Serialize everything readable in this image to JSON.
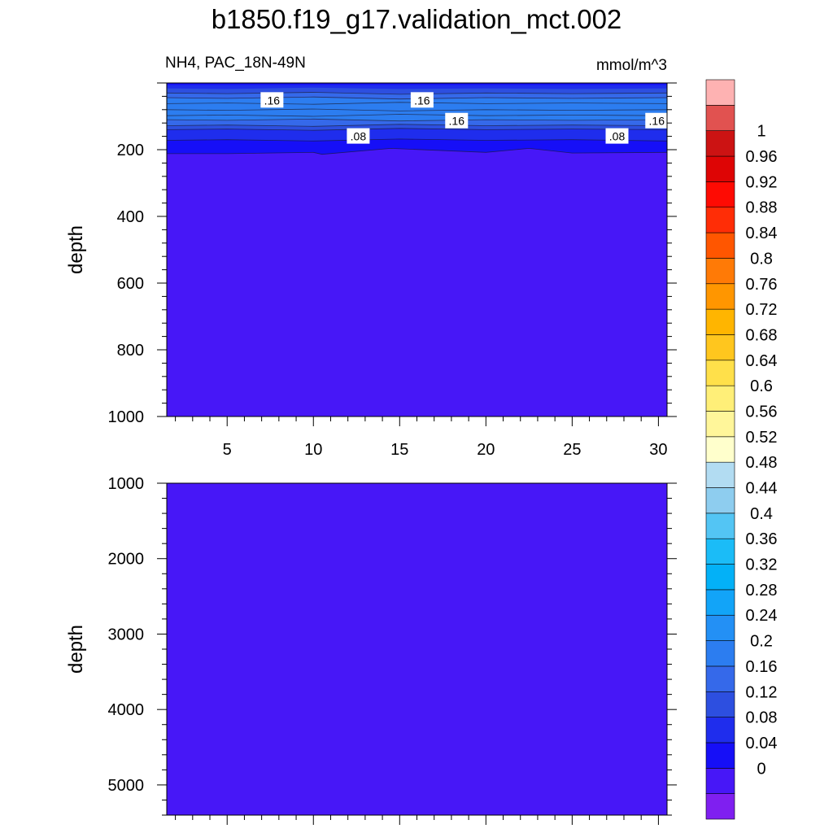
{
  "chart_data": {
    "type": "heatmap",
    "title": "b1850.f19_g17.validation_mct.002",
    "left_string": "NH4, PAC_18N-49N",
    "right_string": "mmol/m^3",
    "variable": "NH4",
    "units": "mmol/m^3",
    "x": {
      "ticks": [
        5,
        10,
        15,
        20,
        25,
        30
      ],
      "tick_labels": [
        "5",
        "10",
        "15",
        "20",
        "25",
        "30"
      ],
      "range": [
        1.5,
        30.5
      ]
    },
    "panels": [
      {
        "ylabel": "depth",
        "ylim": [
          0,
          1000
        ],
        "y_reversed": true,
        "y_ticks": [
          200,
          400,
          600,
          800,
          1000
        ],
        "y_tick_labels": [
          "200",
          "400",
          "600",
          "800",
          "1000"
        ],
        "bands": [
          {
            "value": 0.06,
            "x": [
              1.5,
              5,
              10,
              10.5,
              14.5,
              20,
              22.5,
              25,
              30.5
            ],
            "top": [
              0,
              0,
              0,
              0,
              0,
              0,
              0,
              0,
              0
            ],
            "bottom": [
              212,
              212,
              208,
              214,
              196,
              208,
              196,
              210,
              208
            ]
          },
          {
            "value": 0.1,
            "x": [
              1.5,
              5,
              10,
              15,
              20,
              25,
              30.5
            ],
            "top": [
              0,
              0,
              0,
              0,
              0,
              0,
              0
            ],
            "bottom": [
              172,
              170,
              174,
              168,
              172,
              170,
              174
            ]
          },
          {
            "value": 0.14,
            "x": [
              1.5,
              5,
              10,
              15,
              20,
              25,
              30.5
            ],
            "top": [
              0,
              0,
              0,
              0,
              0,
              0,
              0
            ],
            "bottom": [
              140,
              138,
              142,
              136,
              140,
              138,
              140
            ]
          },
          {
            "value": 0.18,
            "x": [
              1.5,
              5,
              10,
              15,
              20,
              25,
              30.5
            ],
            "top": [
              0,
              0,
              0,
              0,
              0,
              0,
              0
            ],
            "bottom": [
              128,
              126,
              130,
              124,
              128,
              126,
              128
            ]
          },
          {
            "value": 0.22,
            "x": [
              1.5,
              5,
              10,
              15,
              20,
              25,
              30.5
            ],
            "top": [
              46,
              48,
              44,
              50,
              46,
              48,
              46
            ],
            "bottom": [
              110,
              112,
              108,
              114,
              110,
              112,
              110
            ]
          },
          {
            "value": 0.18,
            "x": [
              1.5,
              5,
              10,
              15,
              20,
              25,
              30.5
            ],
            "top": [
              0,
              0,
              0,
              0,
              0,
              0,
              0
            ],
            "bottom": [
              44,
              46,
              42,
              48,
              44,
              46,
              44
            ]
          },
          {
            "value": 0.14,
            "x": [
              1.5,
              5,
              10,
              15,
              20,
              25,
              30.5
            ],
            "top": [
              0,
              0,
              0,
              0,
              0,
              0,
              0
            ],
            "bottom": [
              30,
              32,
              28,
              34,
              30,
              32,
              30
            ]
          },
          {
            "value": 0.1,
            "x": [
              1.5,
              5,
              10,
              15,
              20,
              25,
              30.5
            ],
            "top": [
              0,
              0,
              0,
              0,
              0,
              0,
              0
            ],
            "bottom": [
              16,
              18,
              14,
              18,
              16,
              18,
              16
            ]
          },
          {
            "value": 0.06,
            "x": [
              1.5,
              30.5
            ],
            "top": [
              0,
              0
            ],
            "bottom": [
              6,
              6
            ]
          }
        ],
        "contour_lines": [
          {
            "x": [
              1.5,
              5,
              10,
              15,
              20,
              25,
              30.5
            ],
            "y": [
              30,
              32,
              28,
              34,
              30,
              32,
              30
            ]
          },
          {
            "x": [
              1.5,
              5,
              10,
              15,
              20,
              25,
              30.5
            ],
            "y": [
              44,
              46,
              42,
              48,
              44,
              46,
              44
            ]
          },
          {
            "x": [
              1.5,
              5,
              10,
              15,
              20,
              25,
              30.5
            ],
            "y": [
              62,
              60,
              64,
              58,
              62,
              60,
              62
            ]
          },
          {
            "x": [
              1.5,
              5,
              10,
              15,
              20,
              25,
              30.5
            ],
            "y": [
              80,
              82,
              78,
              84,
              80,
              82,
              80
            ]
          },
          {
            "x": [
              1.5,
              5,
              10,
              15,
              20,
              25,
              30.5
            ],
            "y": [
              98,
              96,
              100,
              94,
              98,
              96,
              98
            ]
          },
          {
            "x": [
              1.5,
              5,
              10,
              15,
              20,
              25,
              30.5
            ],
            "y": [
              110,
              112,
              108,
              114,
              110,
              112,
              110
            ]
          },
          {
            "x": [
              1.5,
              5,
              10,
              15,
              20,
              25,
              30.5
            ],
            "y": [
              128,
              126,
              130,
              124,
              128,
              126,
              128
            ]
          },
          {
            "x": [
              1.5,
              5,
              10,
              15,
              20,
              25,
              30.5
            ],
            "y": [
              140,
              138,
              142,
              136,
              140,
              138,
              140
            ]
          },
          {
            "x": [
              1.5,
              5,
              10,
              15,
              20,
              25,
              30.5
            ],
            "y": [
              172,
              170,
              174,
              168,
              172,
              170,
              174
            ]
          },
          {
            "x": [
              1.5,
              5,
              10,
              10.5,
              14.5,
              20,
              22.5,
              25,
              30.5
            ],
            "y": [
              212,
              212,
              208,
              214,
              196,
              208,
              196,
              210,
              208
            ]
          }
        ],
        "contour_labels": [
          {
            "text": ".16",
            "x": 7.6,
            "y": 52
          },
          {
            "text": ".16",
            "x": 16.3,
            "y": 52
          },
          {
            "text": ".16",
            "x": 18.3,
            "y": 114
          },
          {
            "text": ".16",
            "x": 29.9,
            "y": 114
          },
          {
            "text": ".08",
            "x": 12.6,
            "y": 160
          },
          {
            "text": ".08",
            "x": 27.6,
            "y": 160
          }
        ]
      },
      {
        "ylabel": "depth",
        "ylim": [
          1000,
          5400
        ],
        "y_reversed": true,
        "y_ticks": [
          1000,
          2000,
          3000,
          4000,
          5000
        ],
        "y_tick_labels": [
          "1000",
          "2000",
          "3000",
          "4000",
          "5000"
        ],
        "bands": [],
        "contour_lines": [],
        "contour_labels": []
      }
    ],
    "colorbar": {
      "labels": [
        "0",
        "0.04",
        "0.08",
        "0.12",
        "0.16",
        "0.2",
        "0.24",
        "0.28",
        "0.32",
        "0.36",
        "0.4",
        "0.44",
        "0.48",
        "0.52",
        "0.56",
        "0.6",
        "0.64",
        "0.68",
        "0.72",
        "0.76",
        "0.8",
        "0.84",
        "0.88",
        "0.92",
        "0.96",
        "1"
      ],
      "colors": [
        "#7f1ff0",
        "#4717f7",
        "#160ff7",
        "#1f2ded",
        "#2d4fe0",
        "#3569ea",
        "#2c7df0",
        "#2390f5",
        "#12a4f8",
        "#03b1f7",
        "#1bbcf7",
        "#53c5f4",
        "#8ecdef",
        "#b2dcf2",
        "#ffffcc",
        "#fff69a",
        "#ffef78",
        "#ffe04a",
        "#ffc61e",
        "#ffb500",
        "#ff9600",
        "#ff7a06",
        "#ff5600",
        "#ff2d06",
        "#fe0b03",
        "#de0505",
        "#cc1313",
        "#e15250",
        "#feb2b2"
      ]
    }
  }
}
